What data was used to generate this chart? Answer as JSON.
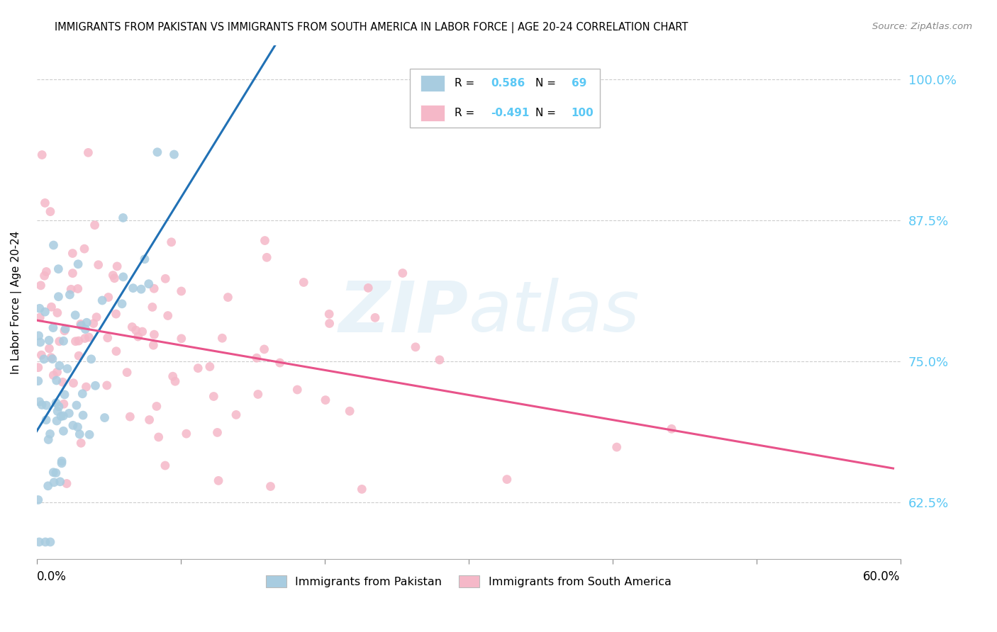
{
  "title": "IMMIGRANTS FROM PAKISTAN VS IMMIGRANTS FROM SOUTH AMERICA IN LABOR FORCE | AGE 20-24 CORRELATION CHART",
  "source": "Source: ZipAtlas.com",
  "ylabel": "In Labor Force | Age 20-24",
  "y_tick_labels": [
    "62.5%",
    "75.0%",
    "87.5%",
    "100.0%"
  ],
  "y_tick_values": [
    0.625,
    0.75,
    0.875,
    1.0
  ],
  "x_lim": [
    0.0,
    0.6
  ],
  "y_lim": [
    0.575,
    1.03
  ],
  "watermark": "ZIPatlas",
  "legend_r1_val": "0.586",
  "legend_n1_val": "69",
  "legend_r2_val": "-0.491",
  "legend_n2_val": "100",
  "blue_color": "#a8cce0",
  "pink_color": "#f5b8c8",
  "blue_line_color": "#2171b5",
  "pink_line_color": "#e8538a",
  "legend_val_color": "#5bc8f5",
  "right_label_color": "#5bc8f5"
}
